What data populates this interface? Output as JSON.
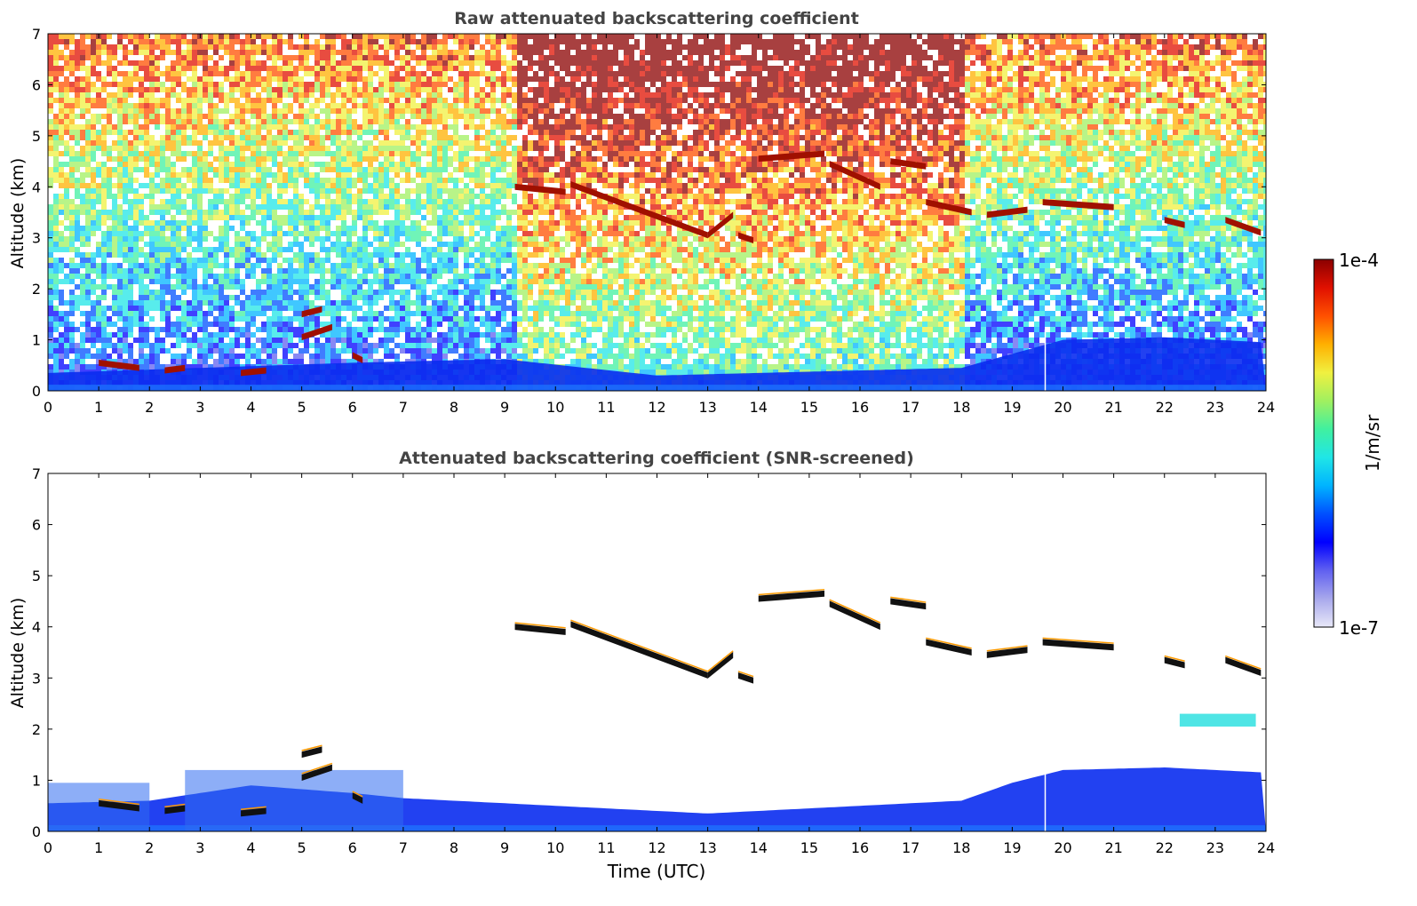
{
  "chart_data": [
    {
      "type": "heatmap",
      "title": "Raw attenuated backscattering coefficient",
      "xlabel": "",
      "ylabel": "Altitude (km)",
      "xlim": [
        0,
        24
      ],
      "ylim": [
        0,
        7
      ],
      "xticks": [
        0,
        1,
        2,
        3,
        4,
        5,
        6,
        7,
        8,
        9,
        10,
        11,
        12,
        13,
        14,
        15,
        16,
        17,
        18,
        19,
        20,
        21,
        22,
        23,
        24
      ],
      "yticks": [
        0,
        1,
        2,
        3,
        4,
        5,
        6,
        7
      ],
      "screened": false,
      "background_noise": "high above ~1 km; stronger (red/orange) between 9.2 and 18 UTC",
      "cloud_layers": [
        {
          "t": [
            9.2,
            10.2
          ],
          "z": [
            4.0,
            3.9
          ]
        },
        {
          "t": [
            10.3,
            13.0
          ],
          "z": [
            4.05,
            3.05
          ]
        },
        {
          "t": [
            13.0,
            13.5
          ],
          "z": [
            3.05,
            3.45
          ]
        },
        {
          "t": [
            13.6,
            13.9
          ],
          "z": [
            3.05,
            2.95
          ]
        },
        {
          "t": [
            14.0,
            15.3
          ],
          "z": [
            4.55,
            4.65
          ]
        },
        {
          "t": [
            15.4,
            16.4
          ],
          "z": [
            4.45,
            4.0
          ]
        },
        {
          "t": [
            16.6,
            17.3
          ],
          "z": [
            4.5,
            4.4
          ]
        },
        {
          "t": [
            17.3,
            18.2
          ],
          "z": [
            3.7,
            3.5
          ]
        },
        {
          "t": [
            18.5,
            19.3
          ],
          "z": [
            3.45,
            3.55
          ]
        },
        {
          "t": [
            19.6,
            21.0
          ],
          "z": [
            3.7,
            3.6
          ]
        },
        {
          "t": [
            22.0,
            22.4
          ],
          "z": [
            3.35,
            3.25
          ]
        },
        {
          "t": [
            23.2,
            23.9
          ],
          "z": [
            3.35,
            3.1
          ]
        },
        {
          "t": [
            1.0,
            1.8
          ],
          "z": [
            0.55,
            0.45
          ]
        },
        {
          "t": [
            2.3,
            2.7
          ],
          "z": [
            0.4,
            0.45
          ]
        },
        {
          "t": [
            3.8,
            4.3
          ],
          "z": [
            0.35,
            0.4
          ]
        },
        {
          "t": [
            5.0,
            5.4
          ],
          "z": [
            1.5,
            1.6
          ]
        },
        {
          "t": [
            5.0,
            5.6
          ],
          "z": [
            1.05,
            1.25
          ]
        },
        {
          "t": [
            6.0,
            6.2
          ],
          "z": [
            0.7,
            0.6
          ]
        }
      ],
      "boundary_layer_km": [
        [
          0,
          0.35
        ],
        [
          3,
          0.45
        ],
        [
          6,
          0.55
        ],
        [
          8,
          0.6
        ],
        [
          9,
          0.62
        ],
        [
          12,
          0.3
        ],
        [
          14,
          0.35
        ],
        [
          16,
          0.4
        ],
        [
          18,
          0.45
        ],
        [
          20,
          1.0
        ],
        [
          22,
          1.05
        ],
        [
          24,
          0.95
        ]
      ]
    },
    {
      "type": "heatmap",
      "title": "Attenuated backscattering coefficient (SNR-screened)",
      "xlabel": "Time (UTC)",
      "ylabel": "Altitude (km)",
      "xlim": [
        0,
        24
      ],
      "ylim": [
        0,
        7
      ],
      "xticks": [
        0,
        1,
        2,
        3,
        4,
        5,
        6,
        7,
        8,
        9,
        10,
        11,
        12,
        13,
        14,
        15,
        16,
        17,
        18,
        19,
        20,
        21,
        22,
        23,
        24
      ],
      "yticks": [
        0,
        1,
        2,
        3,
        4,
        5,
        6,
        7
      ],
      "screened": true,
      "aerosol_layers": [
        {
          "t": [
            0.0,
            2.0
          ],
          "z": [
            0.0,
            0.95
          ]
        },
        {
          "t": [
            2.7,
            7.0
          ],
          "z": [
            0.0,
            1.2
          ]
        },
        {
          "t": [
            22.3,
            23.8
          ],
          "z": [
            2.05,
            2.3
          ]
        }
      ],
      "boundary_layer_km": [
        [
          0,
          0.55
        ],
        [
          2,
          0.6
        ],
        [
          4,
          0.9
        ],
        [
          6,
          0.75
        ],
        [
          7,
          0.65
        ],
        [
          9,
          0.55
        ],
        [
          11,
          0.45
        ],
        [
          13,
          0.35
        ],
        [
          14,
          0.4
        ],
        [
          16,
          0.5
        ],
        [
          18,
          0.6
        ],
        [
          19,
          0.95
        ],
        [
          20,
          1.2
        ],
        [
          22,
          1.25
        ],
        [
          24,
          1.15
        ]
      ]
    }
  ],
  "colorbar": {
    "label": "1/m/sr",
    "max_label": "1e-4",
    "min_label": "1e-7",
    "colors": [
      "#e8e8f8",
      "#a8a8ec",
      "#6060f0",
      "#0000ff",
      "#0050ff",
      "#00b4ff",
      "#20e6e6",
      "#40f0a0",
      "#a0f060",
      "#f0f040",
      "#ffb000",
      "#ff5000",
      "#e01000",
      "#8b0000"
    ]
  }
}
